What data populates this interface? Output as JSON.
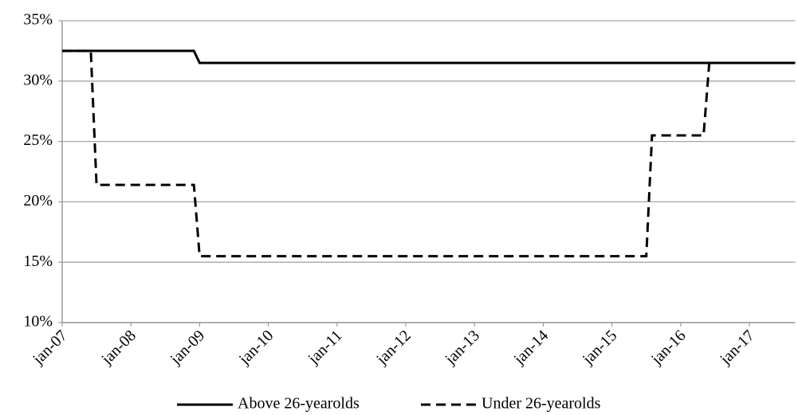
{
  "chart_data": {
    "type": "line",
    "x": [
      "2007-01",
      "2007-06",
      "2007-07",
      "2008-12",
      "2009-01",
      "2015-07",
      "2015-08",
      "2016-05",
      "2016-06",
      "2017-09"
    ],
    "series": [
      {
        "name": "Above 26-yearolds",
        "color": "#000000",
        "line_style": "solid",
        "values": [
          32.5,
          32.5,
          32.5,
          32.5,
          31.5,
          31.5,
          31.5,
          31.5,
          31.5,
          31.5
        ]
      },
      {
        "name": "Under 26-yearolds",
        "color": "#000000",
        "line_style": "dashed",
        "values": [
          32.5,
          32.5,
          21.4,
          21.4,
          15.5,
          15.5,
          25.5,
          25.5,
          31.5,
          31.5
        ]
      }
    ],
    "xlim": [
      "2007-01",
      "2017-09"
    ],
    "xticks": [
      {
        "value": "2007-01",
        "label": "jan-07"
      },
      {
        "value": "2008-01",
        "label": "jan-08"
      },
      {
        "value": "2009-01",
        "label": "jan-09"
      },
      {
        "value": "2010-01",
        "label": "jan-10"
      },
      {
        "value": "2011-01",
        "label": "jan-11"
      },
      {
        "value": "2012-01",
        "label": "jan-12"
      },
      {
        "value": "2013-01",
        "label": "jan-13"
      },
      {
        "value": "2014-01",
        "label": "jan-14"
      },
      {
        "value": "2015-01",
        "label": "jan-15"
      },
      {
        "value": "2016-01",
        "label": "jan-16"
      },
      {
        "value": "2017-01",
        "label": "jan-17"
      }
    ],
    "ylim": [
      10,
      35
    ],
    "yticks": [
      {
        "value": 10,
        "label": "10%"
      },
      {
        "value": 15,
        "label": "15%"
      },
      {
        "value": 20,
        "label": "20%"
      },
      {
        "value": 25,
        "label": "25%"
      },
      {
        "value": 30,
        "label": "30%"
      },
      {
        "value": 35,
        "label": "35%"
      }
    ],
    "grid": true,
    "legend": "bottom"
  }
}
